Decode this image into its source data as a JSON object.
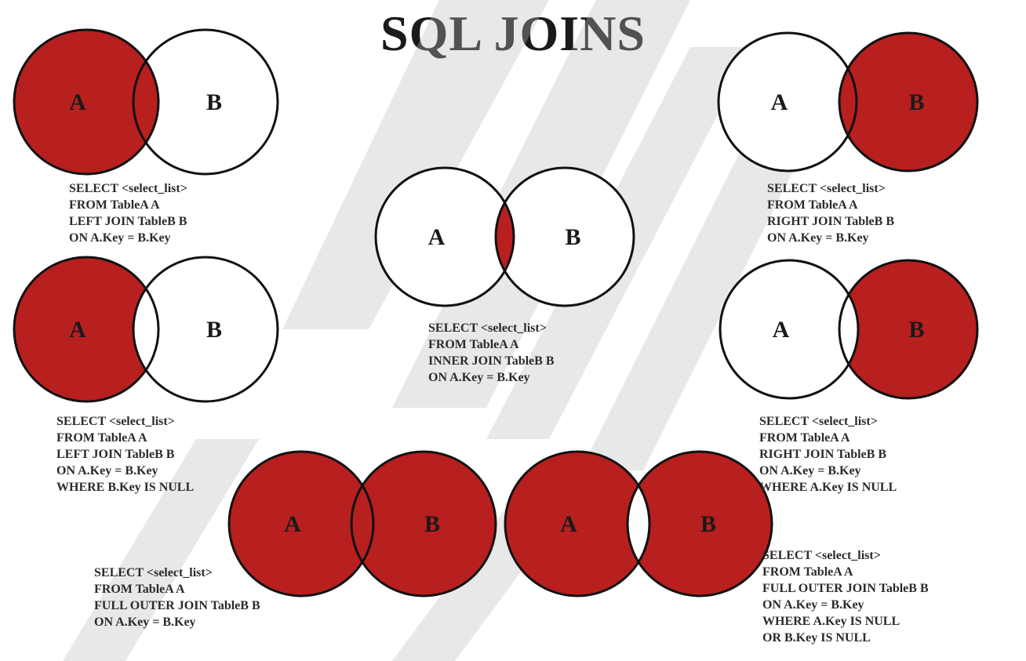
{
  "title": "SQL JOINS",
  "colors": {
    "fill": "#b81f1f",
    "stroke": "#111111",
    "background": "#ffffff"
  },
  "circle_labels": {
    "a": "A",
    "b": "B"
  },
  "joins": [
    {
      "id": "left-join",
      "shading": "left",
      "sql": [
        "SELECT <select_list>",
        "FROM TableA A",
        "LEFT JOIN TableB B",
        "ON A.Key = B.Key"
      ]
    },
    {
      "id": "inner-join",
      "shading": "inner",
      "sql": [
        "SELECT <select_list>",
        "FROM TableA A",
        "INNER JOIN TableB B",
        "ON A.Key = B.Key"
      ]
    },
    {
      "id": "right-join",
      "shading": "right",
      "sql": [
        "SELECT <select_list>",
        "FROM TableA A",
        "RIGHT JOIN TableB B",
        "ON A.Key = B.Key"
      ]
    },
    {
      "id": "left-excluding-join",
      "shading": "left-only",
      "sql": [
        "SELECT <select_list>",
        "FROM TableA A",
        "LEFT JOIN TableB B",
        "ON A.Key = B.Key",
        "WHERE B.Key IS NULL"
      ]
    },
    {
      "id": "right-excluding-join",
      "shading": "right-only",
      "sql": [
        "SELECT <select_list>",
        "FROM TableA A",
        "RIGHT JOIN TableB B",
        "ON A.Key = B.Key",
        "WHERE A.Key IS NULL"
      ]
    },
    {
      "id": "full-outer-join",
      "shading": "full",
      "sql": [
        "SELECT <select_list>",
        "FROM TableA A",
        "FULL OUTER JOIN TableB B",
        "ON A.Key = B.Key"
      ]
    },
    {
      "id": "full-outer-excluding-join",
      "shading": "outer-only",
      "sql": [
        "SELECT <select_list>",
        "FROM TableA A",
        "FULL OUTER JOIN TableB B",
        "ON A.Key = B.Key",
        "WHERE A.Key IS NULL",
        "OR B.Key IS NULL"
      ]
    }
  ]
}
